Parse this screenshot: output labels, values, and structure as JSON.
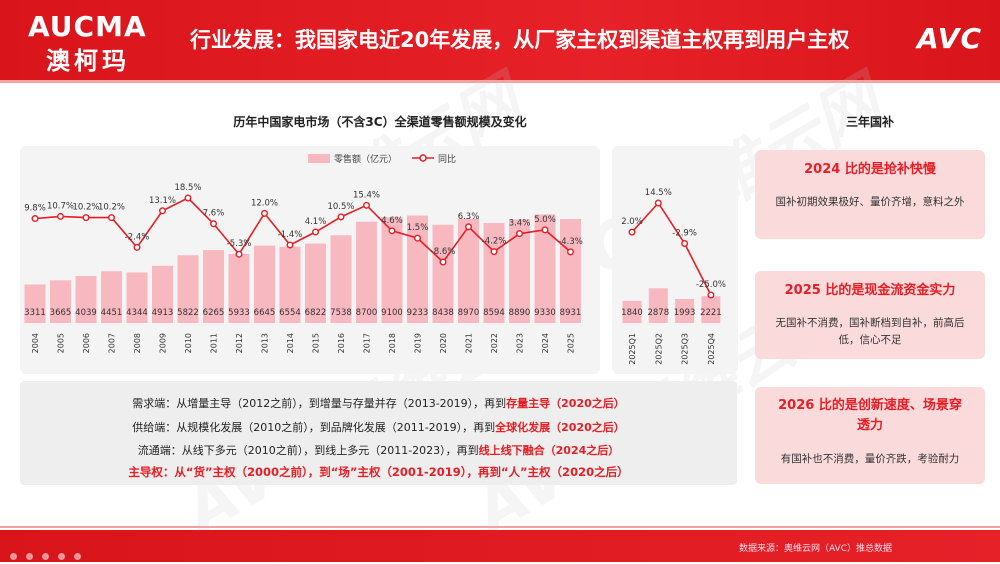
{
  "header": {
    "logo_en": "AUCMA",
    "logo_cn": "澳柯玛",
    "title": "行业发展：我国家电近20年发展，从厂家主权到渠道主权再到用户主权",
    "brand": "AVC"
  },
  "watermark": "AVC 奥维云网",
  "chart_data": [
    {
      "type": "bar+line",
      "title": "历年中国家电市场（不含3C）全渠道零售额规模及变化",
      "legend": {
        "bar": "零售额（亿元）",
        "line": "同比"
      },
      "categories": [
        "2004",
        "2005",
        "2006",
        "2007",
        "2008",
        "2009",
        "2010",
        "2011",
        "2012",
        "2013",
        "2014",
        "2015",
        "2016",
        "2017",
        "2018",
        "2019",
        "2020",
        "2021",
        "2022",
        "2023",
        "2024",
        "2025"
      ],
      "values": [
        3311,
        3665,
        4039,
        4451,
        4344,
        4913,
        5822,
        6265,
        5933,
        6645,
        6554,
        6822,
        7538,
        8700,
        9100,
        9233,
        8438,
        8970,
        8594,
        8890,
        9330,
        8931
      ],
      "yoy": [
        9.8,
        10.7,
        10.2,
        10.2,
        -2.4,
        13.1,
        18.5,
        7.6,
        -5.3,
        12.0,
        -1.4,
        4.1,
        10.5,
        15.4,
        4.6,
        1.5,
        -8.6,
        6.3,
        -4.2,
        3.4,
        5.0,
        -4.3
      ],
      "yoy_labels": [
        "9.8%",
        "10.7%",
        "10.2%",
        "10.2%",
        "-2.4%",
        "13.1%",
        "18.5%",
        "7.6%",
        "-5.3%",
        "12.0%",
        "-1.4%",
        "4.1%",
        "10.5%",
        "15.4%",
        "4.6%",
        "1.5%",
        "-8.6%",
        "6.3%",
        "-4.2%",
        "3.4%",
        "5.0%",
        "-4.3%"
      ]
    },
    {
      "type": "bar+line",
      "categories": [
        "2025Q1",
        "2025Q2",
        "2025Q3",
        "2025Q4"
      ],
      "values": [
        1840,
        2878,
        1993,
        2221
      ],
      "yoy": [
        2.0,
        14.5,
        -2.9,
        -25.0
      ],
      "yoy_labels": [
        "2.0%",
        "14.5%",
        "-2.9%",
        "-25.0%"
      ]
    }
  ],
  "colors": {
    "bar": "#f7b8c0",
    "line": "#e61e25",
    "accent": "#e61e25"
  },
  "summary": {
    "line1": {
      "a": "需求端：从增量主导（2012之前），到增量与存量并存（2013-2019），再到",
      "hl": "存量主导（2020之后）"
    },
    "line2": {
      "a": "供给端：从规模化发展（2010之前），到品牌化发展（2011-2019），再到",
      "hl": "全球化发展（2020之后）"
    },
    "line3": {
      "a": "流通端：从线下多元（2010之前），到线上多元（2011-2023），再到",
      "hl": "线上线下融合（2024之后）"
    },
    "line4": "主导权：从“货”主权（2000之前），到“场”主权（2001-2019），再到“人”主权（2020之后）"
  },
  "right_panel": {
    "title": "三年国补",
    "cards": [
      {
        "title": "2024 比的是抢补快慢",
        "body": "国补初期效果极好、量价齐增，意料之外"
      },
      {
        "title": "2025 比的是现金流资金实力",
        "body": "无国补不消费，国补断档到自补，前高后低，信心不足"
      },
      {
        "title": "2026 比的是创新速度、场景穿透力",
        "body": "有国补也不消费，量价齐跌，考验耐力"
      }
    ]
  },
  "footer": {
    "source": "数据来源：奥维云网（AVC）推总数据"
  }
}
